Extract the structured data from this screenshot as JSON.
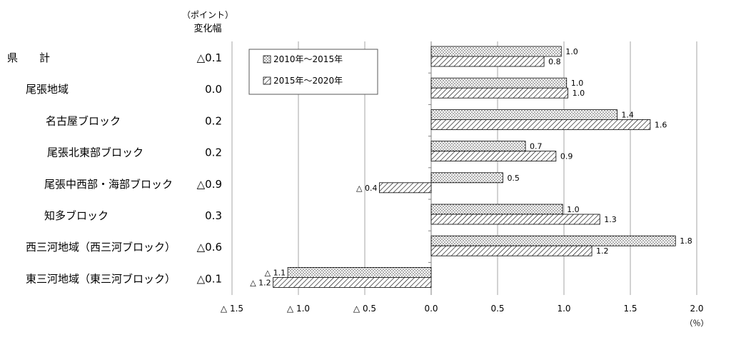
{
  "header": {
    "unit_top": "（ポイント）",
    "unit_bottom": "変化幅"
  },
  "x_unit": "（％）",
  "chart_data": {
    "type": "bar",
    "orientation": "horizontal",
    "categories": [
      "県　　計",
      "尾張地域",
      "名古屋ブロック",
      "尾張北東部ブロック",
      "尾張中西部・海部ブロック",
      "知多ブロック",
      "西三河地域（西三河ブロック）",
      "東三河地域（東三河ブロック）"
    ],
    "change_labels": [
      "△0.1",
      "0.0",
      "0.2",
      "0.2",
      "△0.9",
      "0.3",
      "△0.6",
      "△0.1"
    ],
    "series": [
      {
        "name": "2010年～2015年",
        "pattern": "dots",
        "values": [
          0.98,
          1.02,
          1.4,
          0.71,
          0.54,
          0.99,
          1.84,
          -1.08
        ],
        "labels": [
          "1.0",
          "1.0",
          "1.4",
          "0.7",
          "0.5",
          "1.0",
          "1.8",
          "△ 1.1"
        ]
      },
      {
        "name": "2015年～2020年",
        "pattern": "hatch",
        "values": [
          0.85,
          1.03,
          1.65,
          0.94,
          -0.39,
          1.27,
          1.21,
          -1.19
        ],
        "labels": [
          "0.8",
          "1.0",
          "1.6",
          "0.9",
          "△ 0.4",
          "1.3",
          "1.2",
          "△ 1.2"
        ]
      }
    ],
    "xlim": [
      -1.5,
      2.0
    ],
    "x_ticks": [
      -1.5,
      -1.0,
      -0.5,
      0.0,
      0.5,
      1.0,
      1.5,
      2.0
    ],
    "x_tick_labels": [
      "△ 1.5",
      "△ 1.0",
      "△ 0.5",
      "0.0",
      "0.5",
      "1.0",
      "1.5",
      "2.0"
    ],
    "grid": "vertical",
    "legend": "top-left"
  }
}
